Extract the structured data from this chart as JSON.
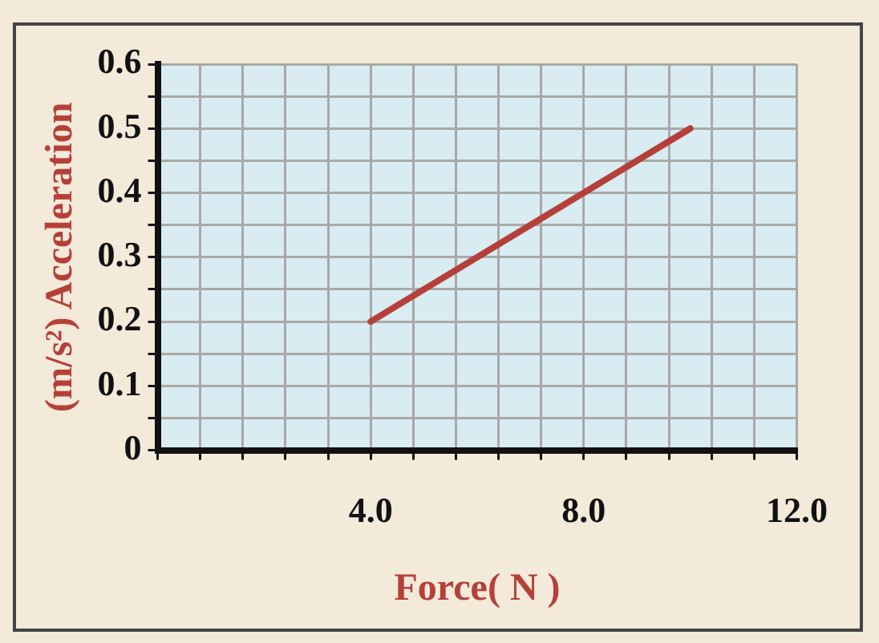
{
  "chart_data": {
    "type": "line",
    "xlabel": "Force( N )",
    "ylabel": "(m/s²) Acceleration",
    "x": [
      4.0,
      10.0
    ],
    "series": [
      {
        "color": "#b5403a",
        "values": [
          0.2,
          0.5
        ]
      }
    ],
    "xlim": [
      0,
      12
    ],
    "xticks": [
      {
        "value": 0,
        "label": null
      },
      {
        "value": 0.8,
        "label": null
      },
      {
        "value": 1.6,
        "label": null
      },
      {
        "value": 2.4,
        "label": null
      },
      {
        "value": 3.2,
        "label": null
      },
      {
        "value": 4,
        "label": "4.0"
      },
      {
        "value": 4.8,
        "label": null
      },
      {
        "value": 5.6,
        "label": null
      },
      {
        "value": 6.4,
        "label": null
      },
      {
        "value": 7.2,
        "label": null
      },
      {
        "value": 8,
        "label": "8.0"
      },
      {
        "value": 8.8,
        "label": null
      },
      {
        "value": 9.6,
        "label": null
      },
      {
        "value": 10.4,
        "label": null
      },
      {
        "value": 11.2,
        "label": null
      },
      {
        "value": 12,
        "label": "12.0"
      }
    ],
    "ylim": [
      0,
      0.6
    ],
    "yticks": [
      0,
      {
        "value": 0.05,
        "label": null
      },
      0.1,
      {
        "value": 0.15,
        "label": null
      },
      0.2,
      {
        "value": 0.25,
        "label": null
      },
      0.3,
      {
        "value": 0.35,
        "label": null
      },
      0.4,
      {
        "value": 0.45,
        "label": null
      },
      0.5,
      {
        "value": 0.55,
        "label": null
      },
      0.6
    ],
    "grid": true,
    "legend": false,
    "marker": "none",
    "line_style": "solid"
  }
}
